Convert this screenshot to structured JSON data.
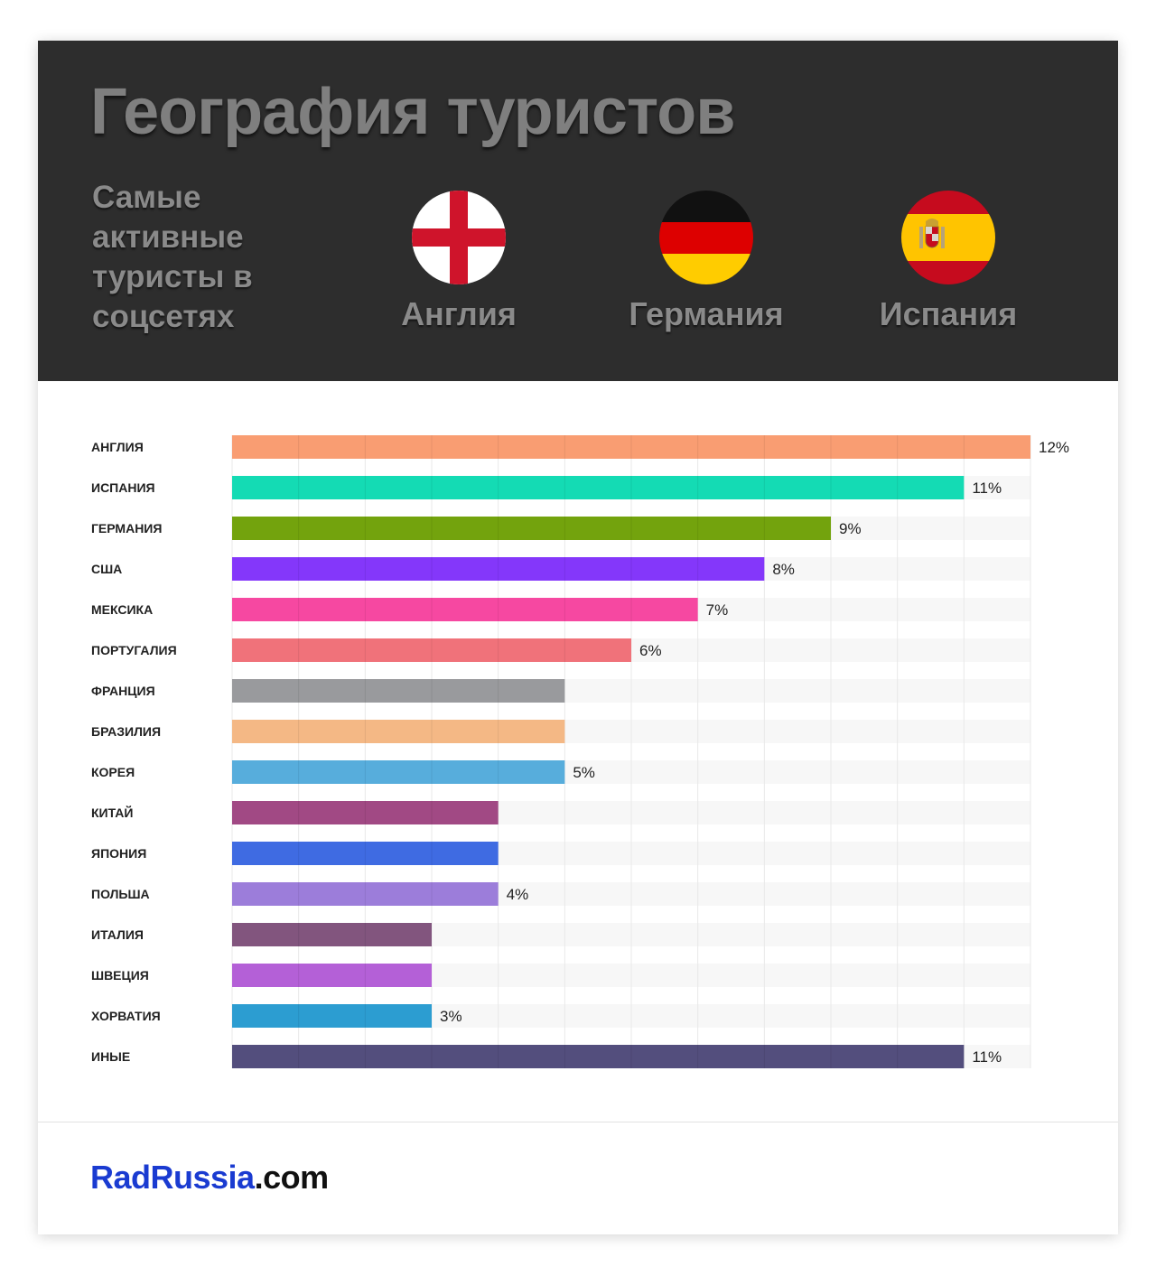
{
  "header": {
    "title": "География туристов",
    "subtitle": "Самые активные туристы в соцсетях",
    "top_countries": [
      {
        "name": "Англия",
        "flag_icon": "england-flag-icon"
      },
      {
        "name": "Германия",
        "flag_icon": "germany-flag-icon"
      },
      {
        "name": "Испания",
        "flag_icon": "spain-flag-icon"
      }
    ]
  },
  "chart_data": {
    "type": "bar",
    "orientation": "horizontal",
    "categories": [
      "АНГЛИЯ",
      "ИСПАНИЯ",
      "ГЕРМАНИЯ",
      "США",
      "МЕКСИКА",
      "ПОРТУГАЛИЯ",
      "ФРАНЦИЯ",
      "БРАЗИЛИЯ",
      "КОРЕЯ",
      "КИТАЙ",
      "ЯПОНИЯ",
      "ПОЛЬША",
      "ИТАЛИЯ",
      "ШВЕЦИЯ",
      "ХОРВАТИЯ",
      "ИНЫЕ"
    ],
    "values": [
      12,
      11,
      9,
      8,
      7,
      6,
      5,
      5,
      5,
      4,
      4,
      4,
      3,
      3,
      3,
      11
    ],
    "value_labels": [
      "12%",
      "11%",
      "9%",
      "8%",
      "7%",
      "6%",
      "",
      "",
      "5%",
      "",
      "",
      "4%",
      "",
      "",
      "3%",
      "11%"
    ],
    "colors": [
      "#f9986a",
      "#07d9b0",
      "#6b9e00",
      "#7d2cfa",
      "#f63e9c",
      "#ef6a73",
      "#939598",
      "#f3b47e",
      "#4ea9da",
      "#9c3f7d",
      "#3563e0",
      "#9776d8",
      "#7b4c77",
      "#b057d5",
      "#2198cf",
      "#4a4576"
    ],
    "xlim": [
      0,
      12
    ],
    "grid": true,
    "legend": false
  },
  "footer": {
    "brand": "RadRussia",
    "tld": ".com"
  }
}
